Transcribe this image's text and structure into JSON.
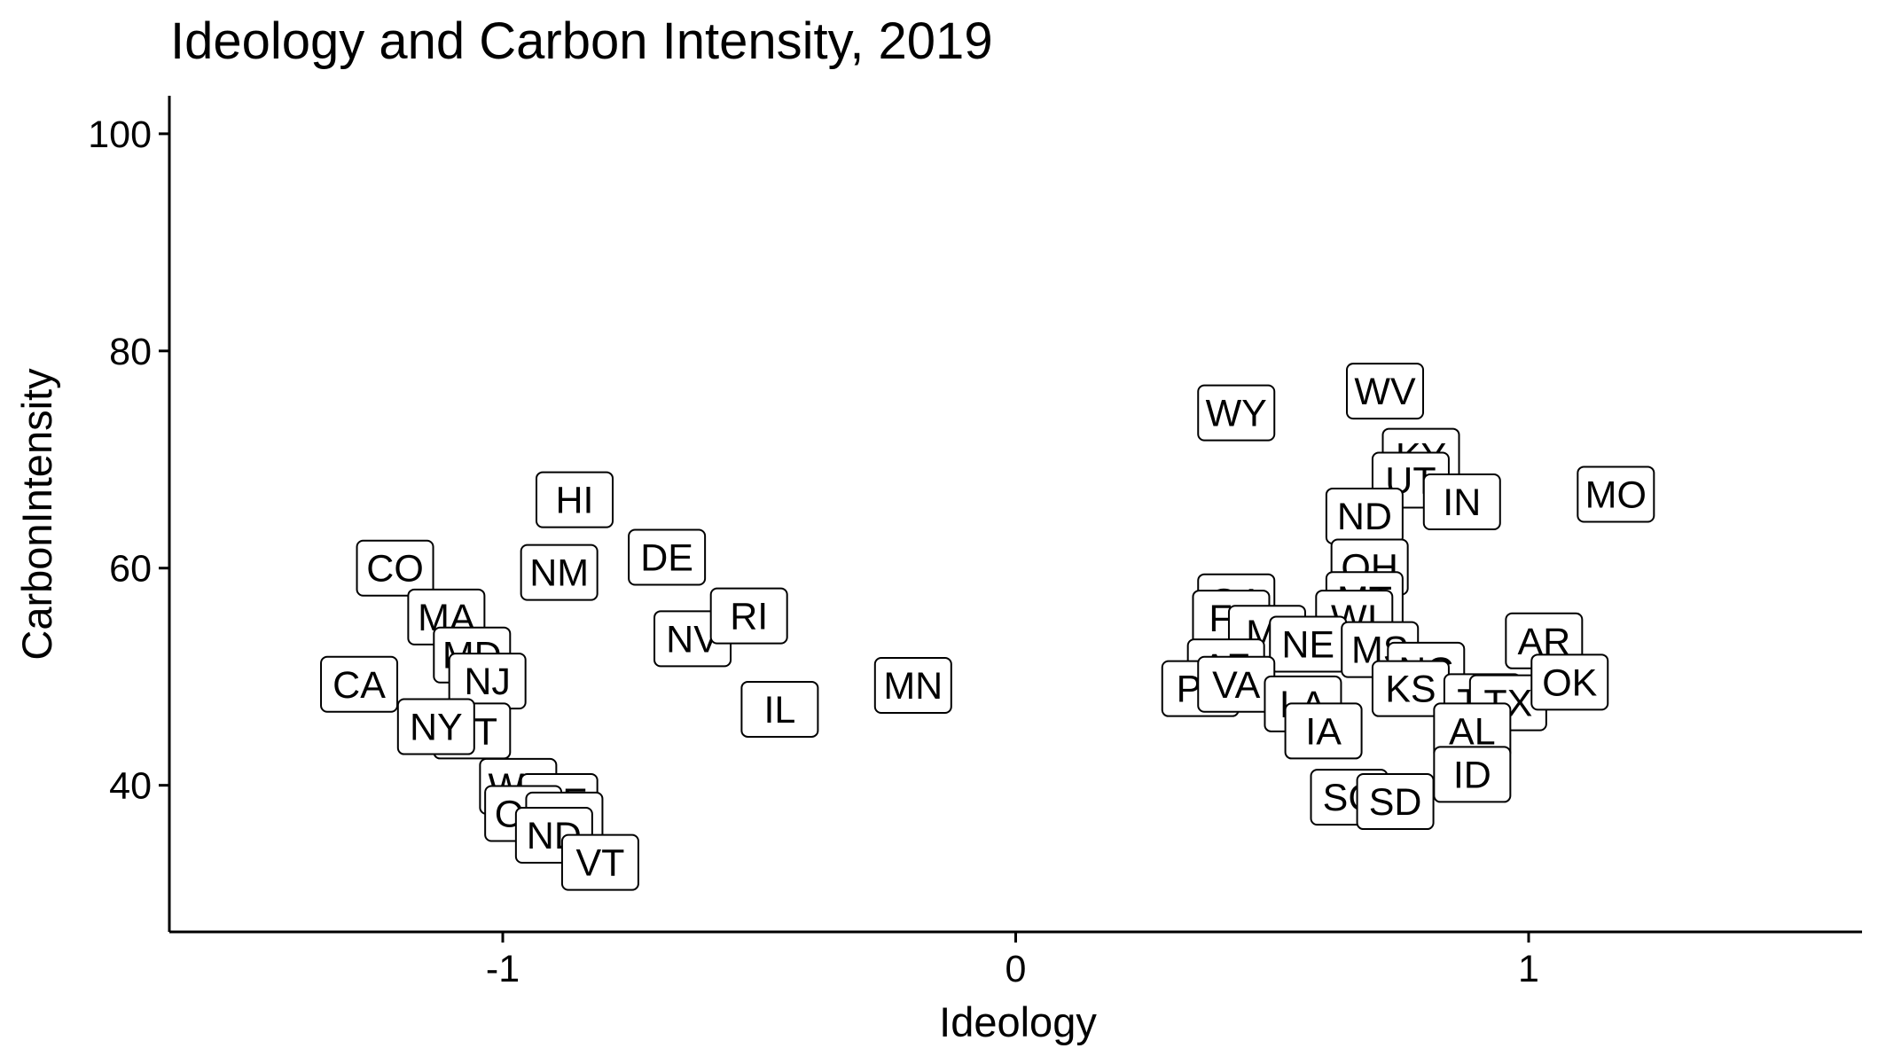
{
  "chart_data": {
    "type": "scatter",
    "title": "Ideology and Carbon Intensity, 2019",
    "xlabel": "Ideology",
    "ylabel": "CarbonIntensity",
    "xlim": [
      -1.65,
      1.65
    ],
    "ylim": [
      26.5,
      103.5
    ],
    "x_ticks": [
      -1,
      0,
      1
    ],
    "x_tick_labels": [
      "-1",
      "0",
      "1"
    ],
    "y_ticks": [
      40,
      60,
      80,
      100
    ],
    "y_tick_labels": [
      "40",
      "60",
      "80",
      "100"
    ],
    "grid": false,
    "legend": "none",
    "points": [
      {
        "label": "CO",
        "x": -1.21,
        "y": 60.0
      },
      {
        "label": "MA",
        "x": -1.11,
        "y": 55.5
      },
      {
        "label": "MD",
        "x": -1.06,
        "y": 52.0
      },
      {
        "label": "NJ",
        "x": -1.03,
        "y": 49.6
      },
      {
        "label": "CA",
        "x": -1.28,
        "y": 49.3
      },
      {
        "label": "CT",
        "x": -1.06,
        "y": 45.0
      },
      {
        "label": "NY",
        "x": -1.13,
        "y": 45.4
      },
      {
        "label": "WA",
        "x": -0.97,
        "y": 39.9
      },
      {
        "label": "ME",
        "x": -0.89,
        "y": 38.5
      },
      {
        "label": "OR",
        "x": -0.96,
        "y": 37.4
      },
      {
        "label": "NH",
        "x": -0.88,
        "y": 36.8
      },
      {
        "label": "ND",
        "x": -0.9,
        "y": 35.4
      },
      {
        "label": "VT",
        "x": -0.81,
        "y": 32.9
      },
      {
        "label": "HI",
        "x": -0.86,
        "y": 66.3
      },
      {
        "label": "NM",
        "x": -0.89,
        "y": 59.6
      },
      {
        "label": "DE",
        "x": -0.68,
        "y": 61.0
      },
      {
        "label": "NV",
        "x": -0.63,
        "y": 53.5
      },
      {
        "label": "RI",
        "x": -0.52,
        "y": 55.6
      },
      {
        "label": "IL",
        "x": -0.46,
        "y": 47.0
      },
      {
        "label": "MN",
        "x": -0.2,
        "y": 49.2
      },
      {
        "label": "WY",
        "x": 0.43,
        "y": 74.3
      },
      {
        "label": "WV",
        "x": 0.72,
        "y": 76.3
      },
      {
        "label": "KY",
        "x": 0.79,
        "y": 70.3
      },
      {
        "label": "UT",
        "x": 0.77,
        "y": 68.1
      },
      {
        "label": "IN",
        "x": 0.87,
        "y": 66.1
      },
      {
        "label": "MO",
        "x": 1.17,
        "y": 66.8
      },
      {
        "label": "ND",
        "x": 0.68,
        "y": 64.8
      },
      {
        "label": "OH",
        "x": 0.69,
        "y": 60.1
      },
      {
        "label": "MT",
        "x": 0.68,
        "y": 57.1
      },
      {
        "label": "WI",
        "x": 0.66,
        "y": 55.4
      },
      {
        "label": "GA",
        "x": 0.43,
        "y": 56.9
      },
      {
        "label": "FL",
        "x": 0.42,
        "y": 55.4
      },
      {
        "label": "MI",
        "x": 0.49,
        "y": 54.0
      },
      {
        "label": "NE",
        "x": 0.57,
        "y": 53.0
      },
      {
        "label": "MS",
        "x": 0.71,
        "y": 52.5
      },
      {
        "label": "AZ",
        "x": 0.41,
        "y": 50.9
      },
      {
        "label": "NC",
        "x": 0.8,
        "y": 50.6
      },
      {
        "label": "PA",
        "x": 0.36,
        "y": 48.9
      },
      {
        "label": "VA",
        "x": 0.43,
        "y": 49.3
      },
      {
        "label": "LA",
        "x": 0.56,
        "y": 47.5
      },
      {
        "label": "KS",
        "x": 0.77,
        "y": 48.9
      },
      {
        "label": "TN",
        "x": 0.91,
        "y": 47.7
      },
      {
        "label": "TX",
        "x": 0.96,
        "y": 47.6
      },
      {
        "label": "AR",
        "x": 1.03,
        "y": 53.3
      },
      {
        "label": "OK",
        "x": 1.08,
        "y": 49.5
      },
      {
        "label": "IA",
        "x": 0.6,
        "y": 45.0
      },
      {
        "label": "AL",
        "x": 0.89,
        "y": 45.0
      },
      {
        "label": "ID",
        "x": 0.89,
        "y": 41.0
      },
      {
        "label": "SC",
        "x": 0.65,
        "y": 38.9
      },
      {
        "label": "SD",
        "x": 0.74,
        "y": 38.5
      }
    ]
  }
}
